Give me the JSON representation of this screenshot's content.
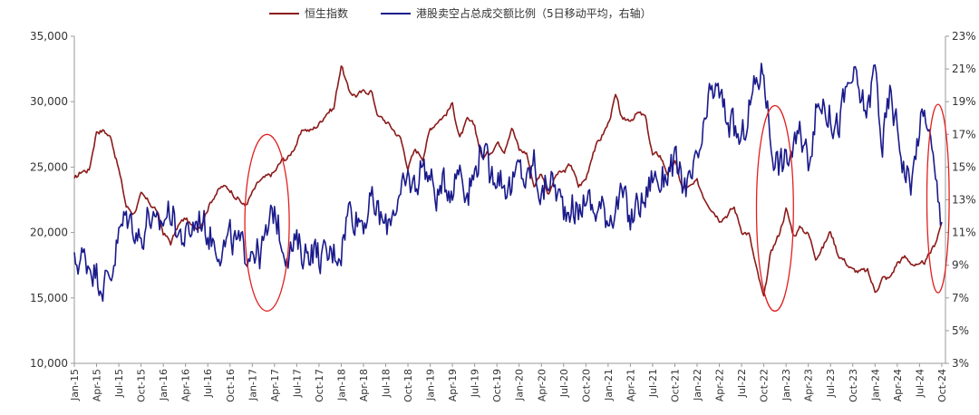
{
  "chart_data": {
    "type": "line",
    "title": "",
    "xlabel": "",
    "ylabel": "",
    "grid": false,
    "legend_position": "top-center",
    "x_ticks": [
      "Jan-15",
      "Apr-15",
      "Jul-15",
      "Oct-15",
      "Jan-16",
      "Apr-16",
      "Jul-16",
      "Oct-16",
      "Jan-17",
      "Apr-17",
      "Jul-17",
      "Oct-17",
      "Jan-18",
      "Apr-18",
      "Jul-18",
      "Oct-18",
      "Jan-19",
      "Apr-19",
      "Jul-19",
      "Oct-19",
      "Jan-20",
      "Apr-20",
      "Jul-20",
      "Oct-20",
      "Jan-21",
      "Apr-21",
      "Jul-21",
      "Oct-21",
      "Jan-22",
      "Apr-22",
      "Jul-22",
      "Oct-22",
      "Jan-23",
      "Apr-23",
      "Jul-23",
      "Oct-23",
      "Jan-24",
      "Apr-24",
      "Jul-24",
      "Oct-24"
    ],
    "y_left": {
      "ticks": [
        "10,000",
        "15,000",
        "20,000",
        "25,000",
        "30,000",
        "35,000"
      ],
      "range": [
        10000,
        35000
      ]
    },
    "y_right": {
      "ticks": [
        "3%",
        "5%",
        "7%",
        "9%",
        "11%",
        "13%",
        "15%",
        "17%",
        "19%",
        "21%",
        "23%"
      ],
      "range": [
        3,
        23
      ]
    },
    "series": [
      {
        "name": "恒生指数",
        "axis": "left",
        "color": "#8B1A1A",
        "points": [
          [
            "2015-01",
            24000
          ],
          [
            "2015-02",
            24700
          ],
          [
            "2015-03",
            24800
          ],
          [
            "2015-04",
            27800
          ],
          [
            "2015-05",
            27800
          ],
          [
            "2015-06",
            27200
          ],
          [
            "2015-07",
            24800
          ],
          [
            "2015-08",
            22000
          ],
          [
            "2015-09",
            21500
          ],
          [
            "2015-10",
            22800
          ],
          [
            "2015-11",
            22300
          ],
          [
            "2015-12",
            21800
          ],
          [
            "2016-01",
            20000
          ],
          [
            "2016-02",
            19200
          ],
          [
            "2016-03",
            20500
          ],
          [
            "2016-04",
            21100
          ],
          [
            "2016-05",
            20300
          ],
          [
            "2016-06",
            20600
          ],
          [
            "2016-07",
            21900
          ],
          [
            "2016-08",
            23000
          ],
          [
            "2016-09",
            23500
          ],
          [
            "2016-10",
            23300
          ],
          [
            "2016-11",
            22700
          ],
          [
            "2016-12",
            22000
          ],
          [
            "2017-01",
            23000
          ],
          [
            "2017-02",
            23900
          ],
          [
            "2017-03",
            24200
          ],
          [
            "2017-04",
            24600
          ],
          [
            "2017-05",
            25500
          ],
          [
            "2017-06",
            25800
          ],
          [
            "2017-07",
            26900
          ],
          [
            "2017-08",
            27900
          ],
          [
            "2017-09",
            27800
          ],
          [
            "2017-10",
            28300
          ],
          [
            "2017-11",
            29200
          ],
          [
            "2017-12",
            29500
          ],
          [
            "2018-01",
            32900
          ],
          [
            "2018-02",
            30800
          ],
          [
            "2018-03",
            30500
          ],
          [
            "2018-04",
            30700
          ],
          [
            "2018-05",
            30900
          ],
          [
            "2018-06",
            28900
          ],
          [
            "2018-07",
            28500
          ],
          [
            "2018-08",
            27900
          ],
          [
            "2018-09",
            27200
          ],
          [
            "2018-10",
            25000
          ],
          [
            "2018-11",
            26300
          ],
          [
            "2018-12",
            25800
          ],
          [
            "2019-01",
            27900
          ],
          [
            "2019-02",
            28600
          ],
          [
            "2019-03",
            29000
          ],
          [
            "2019-04",
            29800
          ],
          [
            "2019-05",
            27200
          ],
          [
            "2019-06",
            28500
          ],
          [
            "2019-07",
            28100
          ],
          [
            "2019-08",
            25700
          ],
          [
            "2019-09",
            26100
          ],
          [
            "2019-10",
            26900
          ],
          [
            "2019-11",
            26400
          ],
          [
            "2019-12",
            28200
          ],
          [
            "2020-01",
            26300
          ],
          [
            "2020-02",
            26100
          ],
          [
            "2020-03",
            23600
          ],
          [
            "2020-04",
            24600
          ],
          [
            "2020-05",
            22900
          ],
          [
            "2020-06",
            24400
          ],
          [
            "2020-07",
            24600
          ],
          [
            "2020-08",
            25200
          ],
          [
            "2020-09",
            23500
          ],
          [
            "2020-10",
            24100
          ],
          [
            "2020-11",
            26300
          ],
          [
            "2020-12",
            27200
          ],
          [
            "2021-01",
            28300
          ],
          [
            "2021-02",
            30400
          ],
          [
            "2021-03",
            28400
          ],
          [
            "2021-04",
            28700
          ],
          [
            "2021-05",
            29100
          ],
          [
            "2021-06",
            28800
          ],
          [
            "2021-07",
            25900
          ],
          [
            "2021-08",
            25900
          ],
          [
            "2021-09",
            24600
          ],
          [
            "2021-10",
            25400
          ],
          [
            "2021-11",
            23400
          ],
          [
            "2021-12",
            23400
          ],
          [
            "2022-01",
            23800
          ],
          [
            "2022-02",
            22700
          ],
          [
            "2022-03",
            21900
          ],
          [
            "2022-04",
            21100
          ],
          [
            "2022-05",
            21400
          ],
          [
            "2022-06",
            21900
          ],
          [
            "2022-07",
            20200
          ],
          [
            "2022-08",
            19900
          ],
          [
            "2022-09",
            17200
          ],
          [
            "2022-10",
            14900
          ],
          [
            "2022-11",
            18600
          ],
          [
            "2022-12",
            19800
          ],
          [
            "2023-01",
            21800
          ],
          [
            "2023-02",
            19800
          ],
          [
            "2023-03",
            20400
          ],
          [
            "2023-04",
            19900
          ],
          [
            "2023-05",
            18200
          ],
          [
            "2023-06",
            18900
          ],
          [
            "2023-07",
            20100
          ],
          [
            "2023-08",
            18400
          ],
          [
            "2023-09",
            17800
          ],
          [
            "2023-10",
            17100
          ],
          [
            "2023-11",
            17000
          ],
          [
            "2023-12",
            17000
          ],
          [
            "2024-01",
            15500
          ],
          [
            "2024-02",
            16500
          ],
          [
            "2024-03",
            16500
          ],
          [
            "2024-04",
            17700
          ],
          [
            "2024-05",
            18100
          ],
          [
            "2024-06",
            17700
          ],
          [
            "2024-07",
            17300
          ],
          [
            "2024-08",
            17900
          ],
          [
            "2024-09",
            19000
          ],
          [
            "2024-10",
            20800
          ]
        ]
      },
      {
        "name": "港股卖空占总成交额比例（5日移动平均，右轴）",
        "axis": "right",
        "color": "#1A1A8C",
        "points": [
          [
            "2015-01",
            9.0
          ],
          [
            "2015-02",
            9.5
          ],
          [
            "2015-03",
            9.2
          ],
          [
            "2015-04",
            8.5
          ],
          [
            "2015-05",
            7.8
          ],
          [
            "2015-06",
            8.6
          ],
          [
            "2015-07",
            10.8
          ],
          [
            "2015-08",
            12.0
          ],
          [
            "2015-09",
            11.5
          ],
          [
            "2015-10",
            10.5
          ],
          [
            "2015-11",
            12.2
          ],
          [
            "2015-12",
            11.0
          ],
          [
            "2016-01",
            11.8
          ],
          [
            "2016-02",
            12.4
          ],
          [
            "2016-03",
            11.0
          ],
          [
            "2016-04",
            10.6
          ],
          [
            "2016-05",
            11.4
          ],
          [
            "2016-06",
            12.0
          ],
          [
            "2016-07",
            11.0
          ],
          [
            "2016-08",
            10.4
          ],
          [
            "2016-09",
            10.0
          ],
          [
            "2016-10",
            10.6
          ],
          [
            "2016-11",
            10.2
          ],
          [
            "2016-12",
            9.8
          ],
          [
            "2017-01",
            10.2
          ],
          [
            "2017-02",
            9.6
          ],
          [
            "2017-03",
            10.8
          ],
          [
            "2017-04",
            12.5
          ],
          [
            "2017-05",
            10.4
          ],
          [
            "2017-06",
            9.8
          ],
          [
            "2017-07",
            10.3
          ],
          [
            "2017-08",
            9.7
          ],
          [
            "2017-09",
            10.1
          ],
          [
            "2017-10",
            9.6
          ],
          [
            "2017-11",
            9.4
          ],
          [
            "2017-12",
            9.8
          ],
          [
            "2018-01",
            10.0
          ],
          [
            "2018-02",
            12.5
          ],
          [
            "2018-03",
            12.0
          ],
          [
            "2018-04",
            11.8
          ],
          [
            "2018-05",
            12.8
          ],
          [
            "2018-06",
            12.2
          ],
          [
            "2018-07",
            11.2
          ],
          [
            "2018-08",
            12.6
          ],
          [
            "2018-09",
            13.0
          ],
          [
            "2018-10",
            14.2
          ],
          [
            "2018-11",
            13.8
          ],
          [
            "2018-12",
            15.4
          ],
          [
            "2019-01",
            14.2
          ],
          [
            "2019-02",
            13.2
          ],
          [
            "2019-03",
            14.0
          ],
          [
            "2019-04",
            13.8
          ],
          [
            "2019-05",
            15.2
          ],
          [
            "2019-06",
            13.4
          ],
          [
            "2019-07",
            14.6
          ],
          [
            "2019-08",
            16.6
          ],
          [
            "2019-09",
            14.4
          ],
          [
            "2019-10",
            14.8
          ],
          [
            "2019-11",
            14.0
          ],
          [
            "2019-12",
            13.6
          ],
          [
            "2020-01",
            15.0
          ],
          [
            "2020-02",
            14.0
          ],
          [
            "2020-03",
            15.4
          ],
          [
            "2020-04",
            13.0
          ],
          [
            "2020-05",
            14.4
          ],
          [
            "2020-06",
            13.6
          ],
          [
            "2020-07",
            12.4
          ],
          [
            "2020-08",
            12.8
          ],
          [
            "2020-09",
            12.0
          ],
          [
            "2020-10",
            13.4
          ],
          [
            "2020-11",
            12.2
          ],
          [
            "2020-12",
            12.6
          ],
          [
            "2021-01",
            12.0
          ],
          [
            "2021-02",
            12.6
          ],
          [
            "2021-03",
            13.2
          ],
          [
            "2021-04",
            11.6
          ],
          [
            "2021-05",
            12.8
          ],
          [
            "2021-06",
            13.0
          ],
          [
            "2021-07",
            14.6
          ],
          [
            "2021-08",
            14.0
          ],
          [
            "2021-09",
            14.8
          ],
          [
            "2021-10",
            15.2
          ],
          [
            "2021-11",
            14.0
          ],
          [
            "2021-12",
            13.8
          ],
          [
            "2022-01",
            15.2
          ],
          [
            "2022-02",
            17.2
          ],
          [
            "2022-03",
            19.8
          ],
          [
            "2022-04",
            19.4
          ],
          [
            "2022-05",
            18.0
          ],
          [
            "2022-06",
            17.2
          ],
          [
            "2022-07",
            16.4
          ],
          [
            "2022-08",
            18.6
          ],
          [
            "2022-09",
            20.2
          ],
          [
            "2022-10",
            21.0
          ],
          [
            "2022-11",
            16.4
          ],
          [
            "2022-12",
            15.2
          ],
          [
            "2023-01",
            15.4
          ],
          [
            "2023-02",
            16.2
          ],
          [
            "2023-03",
            16.8
          ],
          [
            "2023-04",
            15.6
          ],
          [
            "2023-05",
            18.2
          ],
          [
            "2023-06",
            19.2
          ],
          [
            "2023-07",
            18.0
          ],
          [
            "2023-08",
            17.4
          ],
          [
            "2023-09",
            19.4
          ],
          [
            "2023-10",
            20.6
          ],
          [
            "2023-11",
            19.2
          ],
          [
            "2023-12",
            18.4
          ],
          [
            "2024-01",
            21.2
          ],
          [
            "2024-02",
            16.2
          ],
          [
            "2024-03",
            19.4
          ],
          [
            "2024-04",
            17.4
          ],
          [
            "2024-05",
            14.8
          ],
          [
            "2024-06",
            14.2
          ],
          [
            "2024-07",
            17.6
          ],
          [
            "2024-08",
            18.2
          ],
          [
            "2024-09",
            14.6
          ],
          [
            "2024-10",
            11.6
          ]
        ]
      }
    ],
    "annotations": [
      {
        "type": "ellipse",
        "color": "#E02020",
        "period": [
          "2016-12",
          "2017-06"
        ],
        "note_range": [
          14000,
          27500
        ]
      },
      {
        "type": "ellipse",
        "color": "#E02020",
        "period": [
          "2022-09",
          "2023-02"
        ],
        "note_range": [
          14000,
          29700
        ]
      },
      {
        "type": "ellipse",
        "color": "#E02020",
        "period": [
          "2024-08",
          "2024-11"
        ],
        "note_range": [
          15400,
          29800
        ]
      }
    ]
  }
}
